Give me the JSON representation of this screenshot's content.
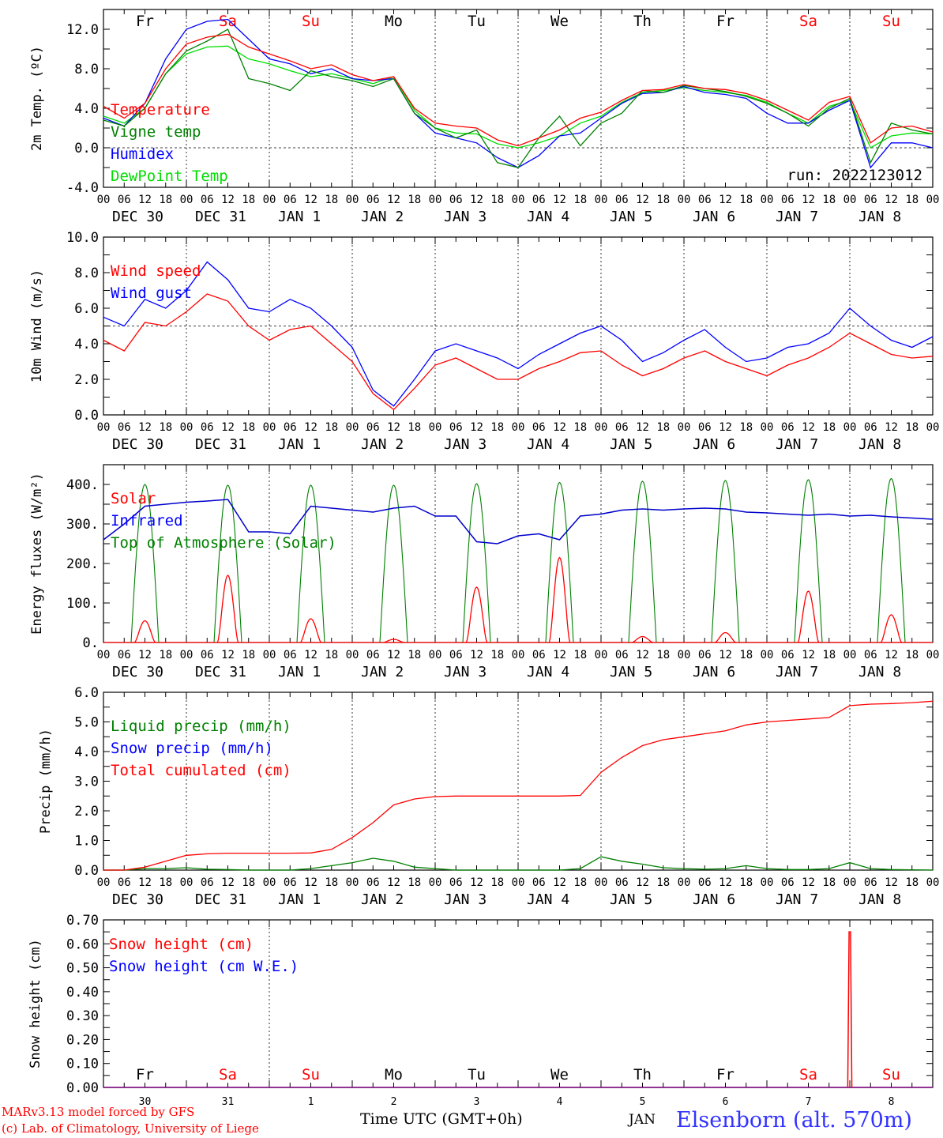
{
  "chart_data": [
    {
      "type": "line",
      "ylabel": "2m Temp. (ºC)",
      "ylim": [
        -4,
        14
      ],
      "yticks": [
        "-4.0",
        "0.0",
        "4.0",
        "8.0",
        "12.0"
      ],
      "ytick_values": [
        -4,
        0,
        4,
        8,
        12
      ],
      "reference_line": 0,
      "annotation": "run: 2022123012",
      "legend": [
        "Temperature",
        "Vigne temp",
        "Humidex",
        "DewPoint Temp"
      ],
      "x_hours": [
        0,
        6,
        12,
        18,
        24,
        30,
        36,
        42,
        48,
        54,
        60,
        66,
        72,
        78,
        84,
        90,
        96,
        102,
        108,
        114,
        120,
        126,
        132,
        138,
        144,
        150,
        156,
        162,
        168,
        174,
        180,
        186,
        192,
        198,
        204,
        210,
        216,
        222,
        228,
        234,
        240
      ],
      "series": [
        {
          "name": "Temperature",
          "color": "#ff0000",
          "values": [
            4.2,
            3.0,
            4.5,
            8.0,
            10.5,
            11.2,
            11.5,
            10.2,
            9.5,
            8.8,
            8.0,
            8.4,
            7.4,
            6.8,
            7.2,
            4.0,
            2.5,
            2.2,
            2.0,
            0.8,
            0.2,
            1.0,
            1.8,
            3.0,
            3.6,
            4.8,
            5.8,
            5.9,
            6.4,
            6.0,
            5.9,
            5.5,
            4.8,
            3.8,
            2.8,
            4.6,
            5.2,
            0.5,
            2.0,
            2.2,
            1.6
          ]
        },
        {
          "name": "Vigne temp",
          "color": "#008000",
          "values": [
            2.8,
            2.2,
            4.0,
            7.5,
            9.8,
            10.8,
            12.0,
            7.0,
            6.5,
            5.8,
            7.8,
            7.2,
            6.8,
            6.2,
            7.0,
            3.5,
            2.0,
            1.0,
            1.8,
            -1.5,
            -2.0,
            1.0,
            3.2,
            0.2,
            2.5,
            3.5,
            5.8,
            5.6,
            6.3,
            6.0,
            5.7,
            5.2,
            4.5,
            3.5,
            2.2,
            4.0,
            5.0,
            -1.5,
            2.5,
            1.8,
            1.4
          ]
        },
        {
          "name": "Humidex",
          "color": "#0000ff",
          "values": [
            3.0,
            2.2,
            4.5,
            9.0,
            12.0,
            12.8,
            13.0,
            11.0,
            9.0,
            8.5,
            7.5,
            8.0,
            7.0,
            6.8,
            7.0,
            3.5,
            1.5,
            1.0,
            0.5,
            -1.0,
            -2.0,
            -0.8,
            1.2,
            1.5,
            3.0,
            4.5,
            5.5,
            5.6,
            6.2,
            5.6,
            5.4,
            5.0,
            3.5,
            2.5,
            2.5,
            3.8,
            4.8,
            -2.0,
            0.5,
            0.5,
            0.0
          ]
        },
        {
          "name": "DewPoint Temp",
          "color": "#00dd00",
          "values": [
            3.2,
            2.5,
            4.0,
            7.5,
            9.5,
            10.2,
            10.3,
            9.0,
            8.5,
            7.8,
            7.2,
            7.5,
            7.0,
            6.5,
            7.2,
            3.8,
            2.0,
            1.5,
            1.4,
            0.4,
            0.0,
            0.5,
            1.2,
            2.5,
            3.2,
            4.6,
            5.6,
            5.8,
            6.1,
            5.8,
            5.6,
            5.3,
            4.6,
            3.5,
            2.5,
            4.2,
            4.8,
            0.0,
            1.2,
            1.5,
            1.4
          ]
        }
      ]
    },
    {
      "type": "line",
      "ylabel": "10m Wind (m/s)",
      "ylim": [
        0,
        10
      ],
      "yticks": [
        "0.0",
        "2.0",
        "4.0",
        "6.0",
        "8.0",
        "10.0"
      ],
      "ytick_values": [
        0,
        2,
        4,
        6,
        8,
        10
      ],
      "reference_line": 5,
      "legend": [
        "Wind speed",
        "Wind gust"
      ],
      "x_hours": [
        0,
        6,
        12,
        18,
        24,
        30,
        36,
        42,
        48,
        54,
        60,
        66,
        72,
        78,
        84,
        90,
        96,
        102,
        108,
        114,
        120,
        126,
        132,
        138,
        144,
        150,
        156,
        162,
        168,
        174,
        180,
        186,
        192,
        198,
        204,
        210,
        216,
        222,
        228,
        234,
        240
      ],
      "series": [
        {
          "name": "Wind speed",
          "color": "#ff0000",
          "values": [
            4.2,
            3.6,
            5.2,
            5.0,
            5.8,
            6.8,
            6.4,
            5.0,
            4.2,
            4.8,
            5.0,
            4.0,
            3.0,
            1.2,
            0.3,
            1.5,
            2.8,
            3.2,
            2.6,
            2.0,
            2.0,
            2.6,
            3.0,
            3.5,
            3.6,
            2.8,
            2.2,
            2.6,
            3.2,
            3.6,
            3.0,
            2.6,
            2.2,
            2.8,
            3.2,
            3.8,
            4.6,
            4.0,
            3.4,
            3.2,
            3.3
          ]
        },
        {
          "name": "Wind gust",
          "color": "#0000ff",
          "values": [
            5.5,
            5.0,
            6.5,
            6.0,
            7.0,
            8.6,
            7.6,
            6.0,
            5.8,
            6.5,
            6.0,
            5.0,
            3.8,
            1.4,
            0.5,
            2.0,
            3.6,
            4.0,
            3.6,
            3.2,
            2.6,
            3.4,
            4.0,
            4.6,
            5.0,
            4.2,
            3.0,
            3.5,
            4.2,
            4.8,
            3.8,
            3.0,
            3.2,
            3.8,
            4.0,
            4.6,
            6.0,
            5.0,
            4.2,
            3.8,
            4.4
          ]
        }
      ]
    },
    {
      "type": "line",
      "ylabel": "Energy fluxes (W/m²)",
      "ylim": [
        0,
        450
      ],
      "yticks": [
        "0.",
        "100.",
        "200.",
        "300.",
        "400."
      ],
      "ytick_values": [
        0,
        100,
        200,
        300,
        400
      ],
      "legend": [
        "Solar",
        "Infrared",
        "Top of Atmosphere (Solar)"
      ],
      "toa_peaks": [
        400,
        398,
        398,
        398,
        402,
        405,
        408,
        410,
        412,
        415
      ],
      "solar_peaks": [
        55,
        170,
        60,
        8,
        140,
        215,
        15,
        25,
        130,
        70
      ],
      "infrared": {
        "color": "#0000cc",
        "x_hours": [
          0,
          6,
          12,
          18,
          24,
          30,
          36,
          42,
          48,
          54,
          60,
          66,
          72,
          78,
          84,
          90,
          96,
          102,
          108,
          114,
          120,
          126,
          132,
          138,
          144,
          150,
          156,
          162,
          168,
          174,
          180,
          186,
          192,
          198,
          204,
          210,
          216,
          222,
          228,
          234,
          240
        ],
        "values": [
          260,
          300,
          345,
          350,
          355,
          358,
          362,
          280,
          280,
          275,
          345,
          340,
          335,
          330,
          340,
          345,
          320,
          320,
          255,
          250,
          270,
          275,
          260,
          320,
          325,
          335,
          338,
          335,
          338,
          340,
          338,
          330,
          328,
          325,
          322,
          325,
          320,
          322,
          318,
          315,
          312
        ]
      }
    },
    {
      "type": "line",
      "ylabel": "Precip (mm/h)",
      "ylim": [
        0,
        6
      ],
      "yticks": [
        "0.0",
        "1.0",
        "2.0",
        "3.0",
        "4.0",
        "5.0",
        "6.0"
      ],
      "ytick_values": [
        0,
        1,
        2,
        3,
        4,
        5,
        6
      ],
      "legend": [
        "Liquid precip (mm/h)",
        "Snow precip (mm/h)",
        "Total cumulated (cm)"
      ],
      "x_hours": [
        0,
        6,
        12,
        18,
        24,
        30,
        36,
        42,
        48,
        54,
        60,
        66,
        72,
        78,
        84,
        90,
        96,
        102,
        108,
        114,
        120,
        126,
        132,
        138,
        144,
        150,
        156,
        162,
        168,
        174,
        180,
        186,
        192,
        198,
        204,
        210,
        216,
        222,
        228,
        234,
        240
      ],
      "series": [
        {
          "name": "Total cumulated (cm)",
          "color": "#ff0000",
          "values": [
            0,
            0,
            0.1,
            0.3,
            0.5,
            0.55,
            0.57,
            0.57,
            0.57,
            0.57,
            0.58,
            0.7,
            1.1,
            1.6,
            2.2,
            2.4,
            2.48,
            2.5,
            2.5,
            2.5,
            2.5,
            2.5,
            2.5,
            2.52,
            3.3,
            3.8,
            4.2,
            4.4,
            4.5,
            4.6,
            4.7,
            4.9,
            5.0,
            5.05,
            5.1,
            5.15,
            5.55,
            5.6,
            5.62,
            5.65,
            5.7
          ]
        },
        {
          "name": "Liquid precip (mm/h)",
          "color": "#008000",
          "values": [
            0,
            0,
            0.05,
            0.05,
            0.08,
            0.03,
            0.02,
            0,
            0,
            0,
            0.05,
            0.15,
            0.25,
            0.4,
            0.3,
            0.1,
            0.05,
            0,
            0,
            0,
            0,
            0,
            0,
            0.05,
            0.45,
            0.3,
            0.2,
            0.08,
            0.05,
            0.03,
            0.05,
            0.15,
            0.05,
            0.02,
            0.02,
            0.05,
            0.25,
            0.05,
            0.02,
            0.01,
            0
          ]
        }
      ]
    },
    {
      "type": "line",
      "ylabel": "Snow height (cm)",
      "ylim": [
        0,
        0.7
      ],
      "yticks": [
        "0.00",
        "0.10",
        "0.20",
        "0.30",
        "0.40",
        "0.50",
        "0.60",
        "0.70"
      ],
      "ytick_values": [
        0,
        0.1,
        0.2,
        0.3,
        0.4,
        0.5,
        0.6,
        0.7
      ],
      "legend": [
        "Snow height (cm)",
        "Snow height (cm W.E.)"
      ],
      "spike": {
        "x_hours": 216,
        "value": 0.65
      }
    }
  ],
  "hour_ticks": [
    "00",
    "06",
    "12",
    "18"
  ],
  "day_dates": [
    "DEC 30",
    "DEC 31",
    "JAN  1",
    "JAN  2",
    "JAN  3",
    "JAN  4",
    "JAN  5",
    "JAN  6",
    "JAN  7",
    "JAN  8"
  ],
  "weekdays": [
    {
      "label": "Fr",
      "color": "#000000"
    },
    {
      "label": "Sa",
      "color": "#ff0000"
    },
    {
      "label": "Su",
      "color": "#ff0000"
    },
    {
      "label": "Mo",
      "color": "#000000"
    },
    {
      "label": "Tu",
      "color": "#000000"
    },
    {
      "label": "We",
      "color": "#000000"
    },
    {
      "label": "Th",
      "color": "#000000"
    },
    {
      "label": "Fr",
      "color": "#000000"
    },
    {
      "label": "Sa",
      "color": "#ff0000"
    },
    {
      "label": "Su",
      "color": "#ff0000"
    }
  ],
  "bottom_days": [
    "30",
    "31",
    "1",
    "2",
    "3",
    "4",
    "5",
    "6",
    "7",
    "8"
  ],
  "footer": {
    "credit1": "MARv3.13 model forced by GFS",
    "credit2": "(c) Lab. of Climatology, University of Liege",
    "xlabel": "Time UTC (GMT+0h)",
    "month": "JAN",
    "station": "Elsenborn (alt. 570m)"
  }
}
